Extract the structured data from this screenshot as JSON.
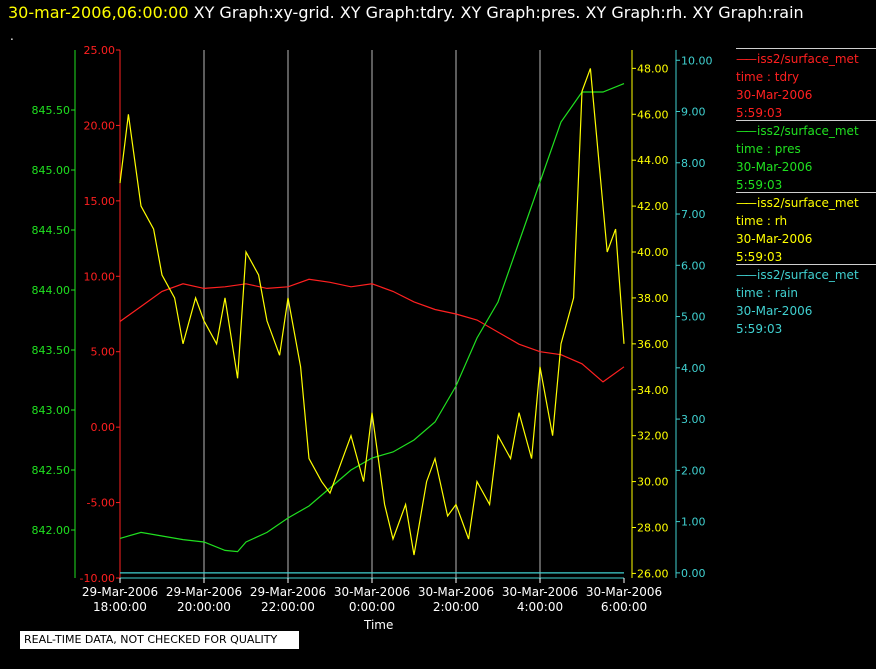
{
  "header": {
    "timestamp": "30-mar-2006,06:00:00",
    "graphs": "XY Graph:xy-grid.  XY Graph:tdry.  XY Graph:pres.  XY Graph:rh.  XY Graph:rain",
    "marker": "."
  },
  "legend": [
    {
      "name": "iss2/surface_met",
      "field": "time : tdry",
      "date": "30-Mar-2006",
      "time": "5:59:03",
      "color": "#ff2020"
    },
    {
      "name": "iss2/surface_met",
      "field": "time : pres",
      "date": "30-Mar-2006",
      "time": "5:59:03",
      "color": "#20e020"
    },
    {
      "name": "iss2/surface_met",
      "field": "time : rh",
      "date": "30-Mar-2006",
      "time": "5:59:03",
      "color": "#ffff00"
    },
    {
      "name": "iss2/surface_met",
      "field": "time : rain",
      "date": "30-Mar-2006",
      "time": "5:59:03",
      "color": "#40d0d0"
    }
  ],
  "footer": {
    "qc_note": "REAL-TIME DATA, NOT CHECKED FOR QUALITY"
  },
  "chart_data": {
    "type": "line",
    "xlabel": "Time",
    "x_ticks": [
      {
        "date": "29-Mar-2006",
        "time": "18:00:00",
        "hour": 0
      },
      {
        "date": "29-Mar-2006",
        "time": "20:00:00",
        "hour": 2
      },
      {
        "date": "29-Mar-2006",
        "time": "22:00:00",
        "hour": 4
      },
      {
        "date": "30-Mar-2006",
        "time": "0:00:00",
        "hour": 6
      },
      {
        "date": "30-Mar-2006",
        "time": "2:00:00",
        "hour": 8
      },
      {
        "date": "30-Mar-2006",
        "time": "4:00:00",
        "hour": 10
      },
      {
        "date": "30-Mar-2006",
        "time": "6:00:00",
        "hour": 12
      }
    ],
    "xlim": [
      0,
      12
    ],
    "grid": "vertical",
    "axes": {
      "pres": {
        "color": "#20e020",
        "ylim": [
          841.6,
          846.0
        ],
        "ticks": [
          "842.00",
          "842.50",
          "843.00",
          "843.50",
          "844.00",
          "844.50",
          "845.00",
          "845.50"
        ]
      },
      "tdry": {
        "color": "#ff2020",
        "ylim": [
          -10,
          25
        ],
        "ticks": [
          "-10.00",
          "-5.00",
          "0.00",
          "5.00",
          "10.00",
          "15.00",
          "20.00",
          "25.00"
        ]
      },
      "rh": {
        "color": "#ffff00",
        "ylim": [
          25.8,
          48.8
        ],
        "ticks": [
          "26.00",
          "28.00",
          "30.00",
          "32.00",
          "34.00",
          "36.00",
          "38.00",
          "40.00",
          "42.00",
          "44.00",
          "46.00",
          "48.00"
        ]
      },
      "rain": {
        "color": "#40d0d0",
        "ylim": [
          -0.1,
          10.2
        ],
        "ticks": [
          "0.00",
          "1.00",
          "2.00",
          "3.00",
          "4.00",
          "5.00",
          "6.00",
          "7.00",
          "8.00",
          "9.00",
          "10.00"
        ]
      }
    },
    "series": [
      {
        "name": "tdry",
        "axis": "tdry",
        "color": "#ff2020",
        "x": [
          0,
          0.5,
          1,
          1.5,
          2,
          2.5,
          3,
          3.5,
          4,
          4.5,
          5,
          5.5,
          6,
          6.5,
          7,
          7.5,
          8,
          8.5,
          9,
          9.5,
          10,
          10.5,
          11,
          11.5,
          12
        ],
        "y": [
          7,
          8,
          9,
          9.5,
          9.2,
          9.3,
          9.5,
          9.2,
          9.3,
          9.8,
          9.6,
          9.3,
          9.5,
          9,
          8.3,
          7.8,
          7.5,
          7.1,
          6.3,
          5.5,
          5,
          4.8,
          4.2,
          3,
          4
        ]
      },
      {
        "name": "pres",
        "axis": "pres",
        "color": "#20e020",
        "x": [
          0,
          0.5,
          1,
          1.5,
          2,
          2.5,
          2.8,
          3,
          3.5,
          4,
          4.5,
          5,
          5.5,
          6,
          6.5,
          7,
          7.5,
          8,
          8.5,
          9,
          9.5,
          10,
          10.5,
          11,
          11.5,
          12
        ],
        "y": [
          841.93,
          841.98,
          841.95,
          841.92,
          841.9,
          841.83,
          841.82,
          841.9,
          841.98,
          842.1,
          842.2,
          842.35,
          842.5,
          842.6,
          842.65,
          842.75,
          842.9,
          843.2,
          843.6,
          843.9,
          844.4,
          844.9,
          845.4,
          845.65,
          845.65,
          845.72
        ]
      },
      {
        "name": "rh",
        "axis": "rh",
        "color": "#ffff00",
        "x": [
          0,
          0.2,
          0.5,
          0.8,
          1,
          1.3,
          1.5,
          1.8,
          2,
          2.3,
          2.5,
          2.8,
          3,
          3.3,
          3.5,
          3.8,
          4,
          4.3,
          4.5,
          4.8,
          5,
          5.3,
          5.5,
          5.8,
          6,
          6.3,
          6.5,
          6.8,
          7,
          7.3,
          7.5,
          7.8,
          8,
          8.3,
          8.5,
          8.8,
          9,
          9.3,
          9.5,
          9.8,
          10,
          10.3,
          10.5,
          10.8,
          11,
          11.2,
          11.4,
          11.6,
          11.8,
          12
        ],
        "y": [
          43,
          46,
          42,
          41,
          39,
          38,
          36,
          38,
          37,
          36,
          38,
          34.5,
          40,
          39,
          37,
          35.5,
          38,
          35,
          31,
          30,
          29.5,
          31,
          32,
          30,
          33,
          29,
          27.5,
          29,
          26.8,
          30,
          31,
          28.5,
          29,
          27.5,
          30,
          29,
          32,
          31,
          33,
          31,
          35,
          32,
          36,
          38,
          47,
          48,
          44,
          40,
          41,
          36
        ]
      },
      {
        "name": "rain",
        "axis": "rain",
        "color": "#40d0d0",
        "x": [
          0,
          12
        ],
        "y": [
          0.0,
          0.0
        ]
      }
    ]
  }
}
